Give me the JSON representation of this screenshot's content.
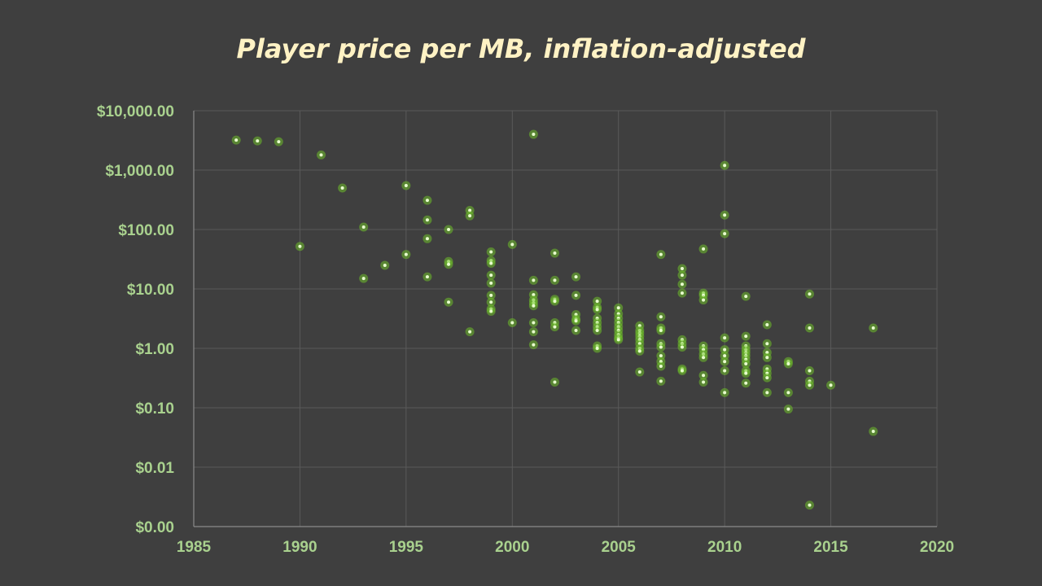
{
  "chart_data": {
    "type": "scatter",
    "title": "Player price per MB, inflation-adjusted",
    "xlabel": "",
    "ylabel": "",
    "x_scale": "linear",
    "y_scale": "log",
    "xlim": [
      1985,
      2020
    ],
    "ylim": [
      0.001,
      10000
    ],
    "x_ticks": [
      1985,
      1990,
      1995,
      2000,
      2005,
      2010,
      2015,
      2020
    ],
    "x_tick_labels": [
      "1985",
      "1990",
      "1995",
      "2000",
      "2005",
      "2010",
      "2015",
      "2020"
    ],
    "y_ticks": [
      0.001,
      0.01,
      0.1,
      1,
      10,
      100,
      1000,
      10000
    ],
    "y_tick_labels": [
      "$0.00",
      "$0.01",
      "$0.10",
      "$1.00",
      "$10.00",
      "$100.00",
      "$1,000.00",
      "$10,000.00"
    ],
    "grid": true,
    "colors": {
      "background": "#3f3f3f",
      "title": "#fff2c4",
      "ticks": "#a9d18e",
      "point": "#6fbf2a",
      "point_core": "#e9ffd0",
      "grid": "#5a5a5a"
    },
    "series": [
      {
        "points": [
          {
            "x": 1987,
            "y": 3200
          },
          {
            "x": 1988,
            "y": 3100
          },
          {
            "x": 1989,
            "y": 3000
          },
          {
            "x": 1990,
            "y": 52
          },
          {
            "x": 1991,
            "y": 1800
          },
          {
            "x": 1992,
            "y": 500
          },
          {
            "x": 1993,
            "y": 110
          },
          {
            "x": 1993,
            "y": 15
          },
          {
            "x": 1994,
            "y": 25
          },
          {
            "x": 1995,
            "y": 550
          },
          {
            "x": 1995,
            "y": 38
          },
          {
            "x": 1996,
            "y": 310
          },
          {
            "x": 1996,
            "y": 145
          },
          {
            "x": 1996,
            "y": 70
          },
          {
            "x": 1996,
            "y": 16
          },
          {
            "x": 1997,
            "y": 100
          },
          {
            "x": 1997,
            "y": 29
          },
          {
            "x": 1997,
            "y": 26
          },
          {
            "x": 1997,
            "y": 6
          },
          {
            "x": 1998,
            "y": 210
          },
          {
            "x": 1998,
            "y": 170
          },
          {
            "x": 1998,
            "y": 1.9
          },
          {
            "x": 1999,
            "y": 42
          },
          {
            "x": 1999,
            "y": 30
          },
          {
            "x": 1999,
            "y": 27
          },
          {
            "x": 1999,
            "y": 17
          },
          {
            "x": 1999,
            "y": 12.5
          },
          {
            "x": 1999,
            "y": 7.8
          },
          {
            "x": 1999,
            "y": 6
          },
          {
            "x": 1999,
            "y": 4.6
          },
          {
            "x": 1999,
            "y": 4.2
          },
          {
            "x": 2000,
            "y": 56
          },
          {
            "x": 2000,
            "y": 2.7
          },
          {
            "x": 2001,
            "y": 4000
          },
          {
            "x": 2001,
            "y": 14
          },
          {
            "x": 2001,
            "y": 8
          },
          {
            "x": 2001,
            "y": 6.5
          },
          {
            "x": 2001,
            "y": 5.8
          },
          {
            "x": 2001,
            "y": 5.2
          },
          {
            "x": 2001,
            "y": 2.7
          },
          {
            "x": 2001,
            "y": 1.9
          },
          {
            "x": 2001,
            "y": 1.15
          },
          {
            "x": 2002,
            "y": 40
          },
          {
            "x": 2002,
            "y": 14
          },
          {
            "x": 2002,
            "y": 6.7
          },
          {
            "x": 2002,
            "y": 6.2
          },
          {
            "x": 2002,
            "y": 2.7
          },
          {
            "x": 2002,
            "y": 2.3
          },
          {
            "x": 2002,
            "y": 0.27
          },
          {
            "x": 2003,
            "y": 16
          },
          {
            "x": 2003,
            "y": 7.8
          },
          {
            "x": 2003,
            "y": 3.7
          },
          {
            "x": 2003,
            "y": 3.1
          },
          {
            "x": 2003,
            "y": 2.9
          },
          {
            "x": 2003,
            "y": 2.0
          },
          {
            "x": 2004,
            "y": 6.2
          },
          {
            "x": 2004,
            "y": 4.9
          },
          {
            "x": 2004,
            "y": 4.5
          },
          {
            "x": 2004,
            "y": 3.2
          },
          {
            "x": 2004,
            "y": 2.7
          },
          {
            "x": 2004,
            "y": 2.3
          },
          {
            "x": 2004,
            "y": 2.0
          },
          {
            "x": 2004,
            "y": 1.1
          },
          {
            "x": 2004,
            "y": 1.0
          },
          {
            "x": 2005,
            "y": 4.8
          },
          {
            "x": 2005,
            "y": 3.8
          },
          {
            "x": 2005,
            "y": 3.2
          },
          {
            "x": 2005,
            "y": 2.7
          },
          {
            "x": 2005,
            "y": 2.3
          },
          {
            "x": 2005,
            "y": 2.0
          },
          {
            "x": 2005,
            "y": 1.7
          },
          {
            "x": 2005,
            "y": 1.5
          },
          {
            "x": 2005,
            "y": 1.4
          },
          {
            "x": 2006,
            "y": 2.4
          },
          {
            "x": 2006,
            "y": 2.0
          },
          {
            "x": 2006,
            "y": 1.8
          },
          {
            "x": 2006,
            "y": 1.6
          },
          {
            "x": 2006,
            "y": 1.4
          },
          {
            "x": 2006,
            "y": 1.2
          },
          {
            "x": 2006,
            "y": 1.0
          },
          {
            "x": 2006,
            "y": 0.9
          },
          {
            "x": 2006,
            "y": 0.4
          },
          {
            "x": 2007,
            "y": 38
          },
          {
            "x": 2007,
            "y": 3.4
          },
          {
            "x": 2007,
            "y": 2.2
          },
          {
            "x": 2007,
            "y": 2.0
          },
          {
            "x": 2007,
            "y": 1.2
          },
          {
            "x": 2007,
            "y": 1.05
          },
          {
            "x": 2007,
            "y": 0.75
          },
          {
            "x": 2007,
            "y": 0.6
          },
          {
            "x": 2007,
            "y": 0.5
          },
          {
            "x": 2007,
            "y": 0.28
          },
          {
            "x": 2008,
            "y": 22
          },
          {
            "x": 2008,
            "y": 17
          },
          {
            "x": 2008,
            "y": 12
          },
          {
            "x": 2008,
            "y": 8.5
          },
          {
            "x": 2008,
            "y": 1.4
          },
          {
            "x": 2008,
            "y": 1.2
          },
          {
            "x": 2008,
            "y": 1.05
          },
          {
            "x": 2008,
            "y": 0.45
          },
          {
            "x": 2008,
            "y": 0.42
          },
          {
            "x": 2009,
            "y": 47
          },
          {
            "x": 2009,
            "y": 8.5
          },
          {
            "x": 2009,
            "y": 7.8
          },
          {
            "x": 2009,
            "y": 6.5
          },
          {
            "x": 2009,
            "y": 1.1
          },
          {
            "x": 2009,
            "y": 0.95
          },
          {
            "x": 2009,
            "y": 0.8
          },
          {
            "x": 2009,
            "y": 0.7
          },
          {
            "x": 2009,
            "y": 0.35
          },
          {
            "x": 2009,
            "y": 0.27
          },
          {
            "x": 2010,
            "y": 1200
          },
          {
            "x": 2010,
            "y": 175
          },
          {
            "x": 2010,
            "y": 85
          },
          {
            "x": 2010,
            "y": 1.5
          },
          {
            "x": 2010,
            "y": 0.95
          },
          {
            "x": 2010,
            "y": 0.75
          },
          {
            "x": 2010,
            "y": 0.6
          },
          {
            "x": 2010,
            "y": 0.42
          },
          {
            "x": 2010,
            "y": 0.18
          },
          {
            "x": 2011,
            "y": 7.5
          },
          {
            "x": 2011,
            "y": 1.6
          },
          {
            "x": 2011,
            "y": 1.1
          },
          {
            "x": 2011,
            "y": 0.95
          },
          {
            "x": 2011,
            "y": 0.85
          },
          {
            "x": 2011,
            "y": 0.75
          },
          {
            "x": 2011,
            "y": 0.65
          },
          {
            "x": 2011,
            "y": 0.55
          },
          {
            "x": 2011,
            "y": 0.42
          },
          {
            "x": 2011,
            "y": 0.38
          },
          {
            "x": 2011,
            "y": 0.26
          },
          {
            "x": 2012,
            "y": 2.5
          },
          {
            "x": 2012,
            "y": 1.2
          },
          {
            "x": 2012,
            "y": 0.85
          },
          {
            "x": 2012,
            "y": 0.7
          },
          {
            "x": 2012,
            "y": 0.45
          },
          {
            "x": 2012,
            "y": 0.38
          },
          {
            "x": 2012,
            "y": 0.32
          },
          {
            "x": 2012,
            "y": 0.18
          },
          {
            "x": 2013,
            "y": 0.6
          },
          {
            "x": 2013,
            "y": 0.55
          },
          {
            "x": 2013,
            "y": 0.18
          },
          {
            "x": 2013,
            "y": 0.095
          },
          {
            "x": 2014,
            "y": 8.2
          },
          {
            "x": 2014,
            "y": 2.2
          },
          {
            "x": 2014,
            "y": 0.42
          },
          {
            "x": 2014,
            "y": 0.28
          },
          {
            "x": 2014,
            "y": 0.24
          },
          {
            "x": 2014,
            "y": 0.0023
          },
          {
            "x": 2015,
            "y": 0.24
          },
          {
            "x": 2017,
            "y": 2.2
          },
          {
            "x": 2017,
            "y": 0.04
          }
        ]
      }
    ]
  }
}
